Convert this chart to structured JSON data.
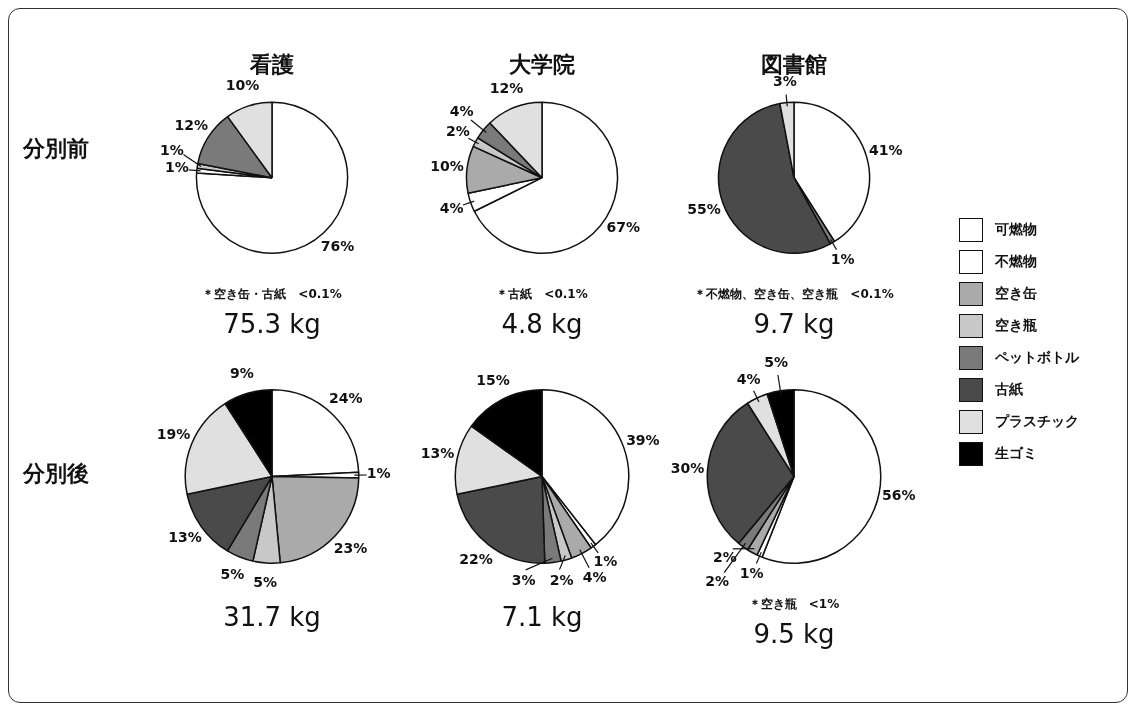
{
  "chart_data": [
    {
      "type": "pie",
      "title": "看護",
      "ylabel": "分別前",
      "legend": "right",
      "categories": [
        "可燃物",
        "不燃物",
        "空き缶",
        "空き瓶",
        "ペットボトル",
        "古紙",
        "プラスチック",
        "生ゴミ"
      ],
      "values": [
        76,
        1,
        null,
        1,
        12,
        null,
        10,
        null
      ],
      "value_labels": [
        "76%",
        "1%",
        null,
        "1%",
        "12%",
        null,
        "10%",
        null
      ],
      "colors": [
        "#ffffff",
        "#ffffff",
        "#aaaaaa",
        "#c8c8c8",
        "#7a7a7a",
        "#4a4a4a",
        "#e0e0e0",
        "#000000"
      ],
      "annotations": [
        "＊空き缶・古紙　<0.1%",
        "75.3 kg"
      ]
    },
    {
      "type": "pie",
      "title": "大学院",
      "categories": [
        null,
        null,
        null,
        null,
        null,
        null,
        null,
        null
      ],
      "values": [
        67,
        4,
        10,
        2,
        4,
        null,
        12,
        null
      ],
      "value_labels": [
        "67%",
        "4%",
        "10%",
        "2%",
        "4%",
        null,
        "12%",
        null
      ],
      "colors": [
        "#ffffff",
        "#ffffff",
        "#aaaaaa",
        "#c8c8c8",
        "#7a7a7a",
        "#4a4a4a",
        "#e0e0e0",
        "#000000"
      ],
      "annotations": [
        "＊古紙　<0.1%",
        "4.8 kg"
      ]
    },
    {
      "type": "pie",
      "title": "図書館",
      "categories": [
        null,
        null,
        null,
        null,
        null,
        null,
        null,
        null
      ],
      "values": [
        41,
        null,
        null,
        null,
        1,
        55,
        3,
        null
      ],
      "value_labels": [
        "41%",
        null,
        null,
        null,
        "1%",
        "55%",
        "3%",
        null
      ],
      "colors": [
        "#ffffff",
        "#ffffff",
        "#aaaaaa",
        "#c8c8c8",
        "#7a7a7a",
        "#4a4a4a",
        "#e0e0e0",
        "#000000"
      ],
      "annotations": [
        "＊不燃物、空き缶、空き瓶　<0.1%",
        "9.7 kg"
      ]
    },
    {
      "type": "pie",
      "ylabel": "分別後",
      "categories": [
        null,
        null,
        null,
        null,
        null,
        null,
        null,
        null
      ],
      "values": [
        24,
        1,
        23,
        5,
        5,
        13,
        19,
        9
      ],
      "value_labels": [
        "24%",
        "1%",
        "23%",
        "5%",
        "5%",
        "13%",
        "19%",
        "9%"
      ],
      "colors": [
        "#ffffff",
        "#ffffff",
        "#aaaaaa",
        "#c8c8c8",
        "#7a7a7a",
        "#4a4a4a",
        "#e0e0e0",
        "#000000"
      ],
      "annotations": [
        "31.7 kg"
      ]
    },
    {
      "type": "pie",
      "categories": [
        null,
        null,
        null,
        null,
        null,
        null,
        null,
        null
      ],
      "values": [
        39,
        1,
        4,
        2,
        3,
        22,
        13,
        15
      ],
      "value_labels": [
        "39%",
        "1%",
        "4%",
        "2%",
        "3%",
        "22%",
        "13%",
        "15%"
      ],
      "colors": [
        "#ffffff",
        "#ffffff",
        "#aaaaaa",
        "#c8c8c8",
        "#7a7a7a",
        "#4a4a4a",
        "#e0e0e0",
        "#000000"
      ],
      "annotations": [
        "7.1 kg"
      ]
    },
    {
      "type": "pie",
      "categories": [
        null,
        null,
        null,
        null,
        null,
        null,
        null,
        null
      ],
      "values": [
        56,
        1,
        2,
        null,
        2,
        30,
        4,
        5
      ],
      "value_labels": [
        "56%",
        "1%",
        "2%",
        null,
        "2%",
        "30%",
        "4%",
        "5%"
      ],
      "colors": [
        "#ffffff",
        "#ffffff",
        "#aaaaaa",
        "#c8c8c8",
        "#7a7a7a",
        "#4a4a4a",
        "#e0e0e0",
        "#000000"
      ],
      "annotations": [
        "＊空き瓶　<1%",
        "9.5 kg"
      ]
    }
  ]
}
